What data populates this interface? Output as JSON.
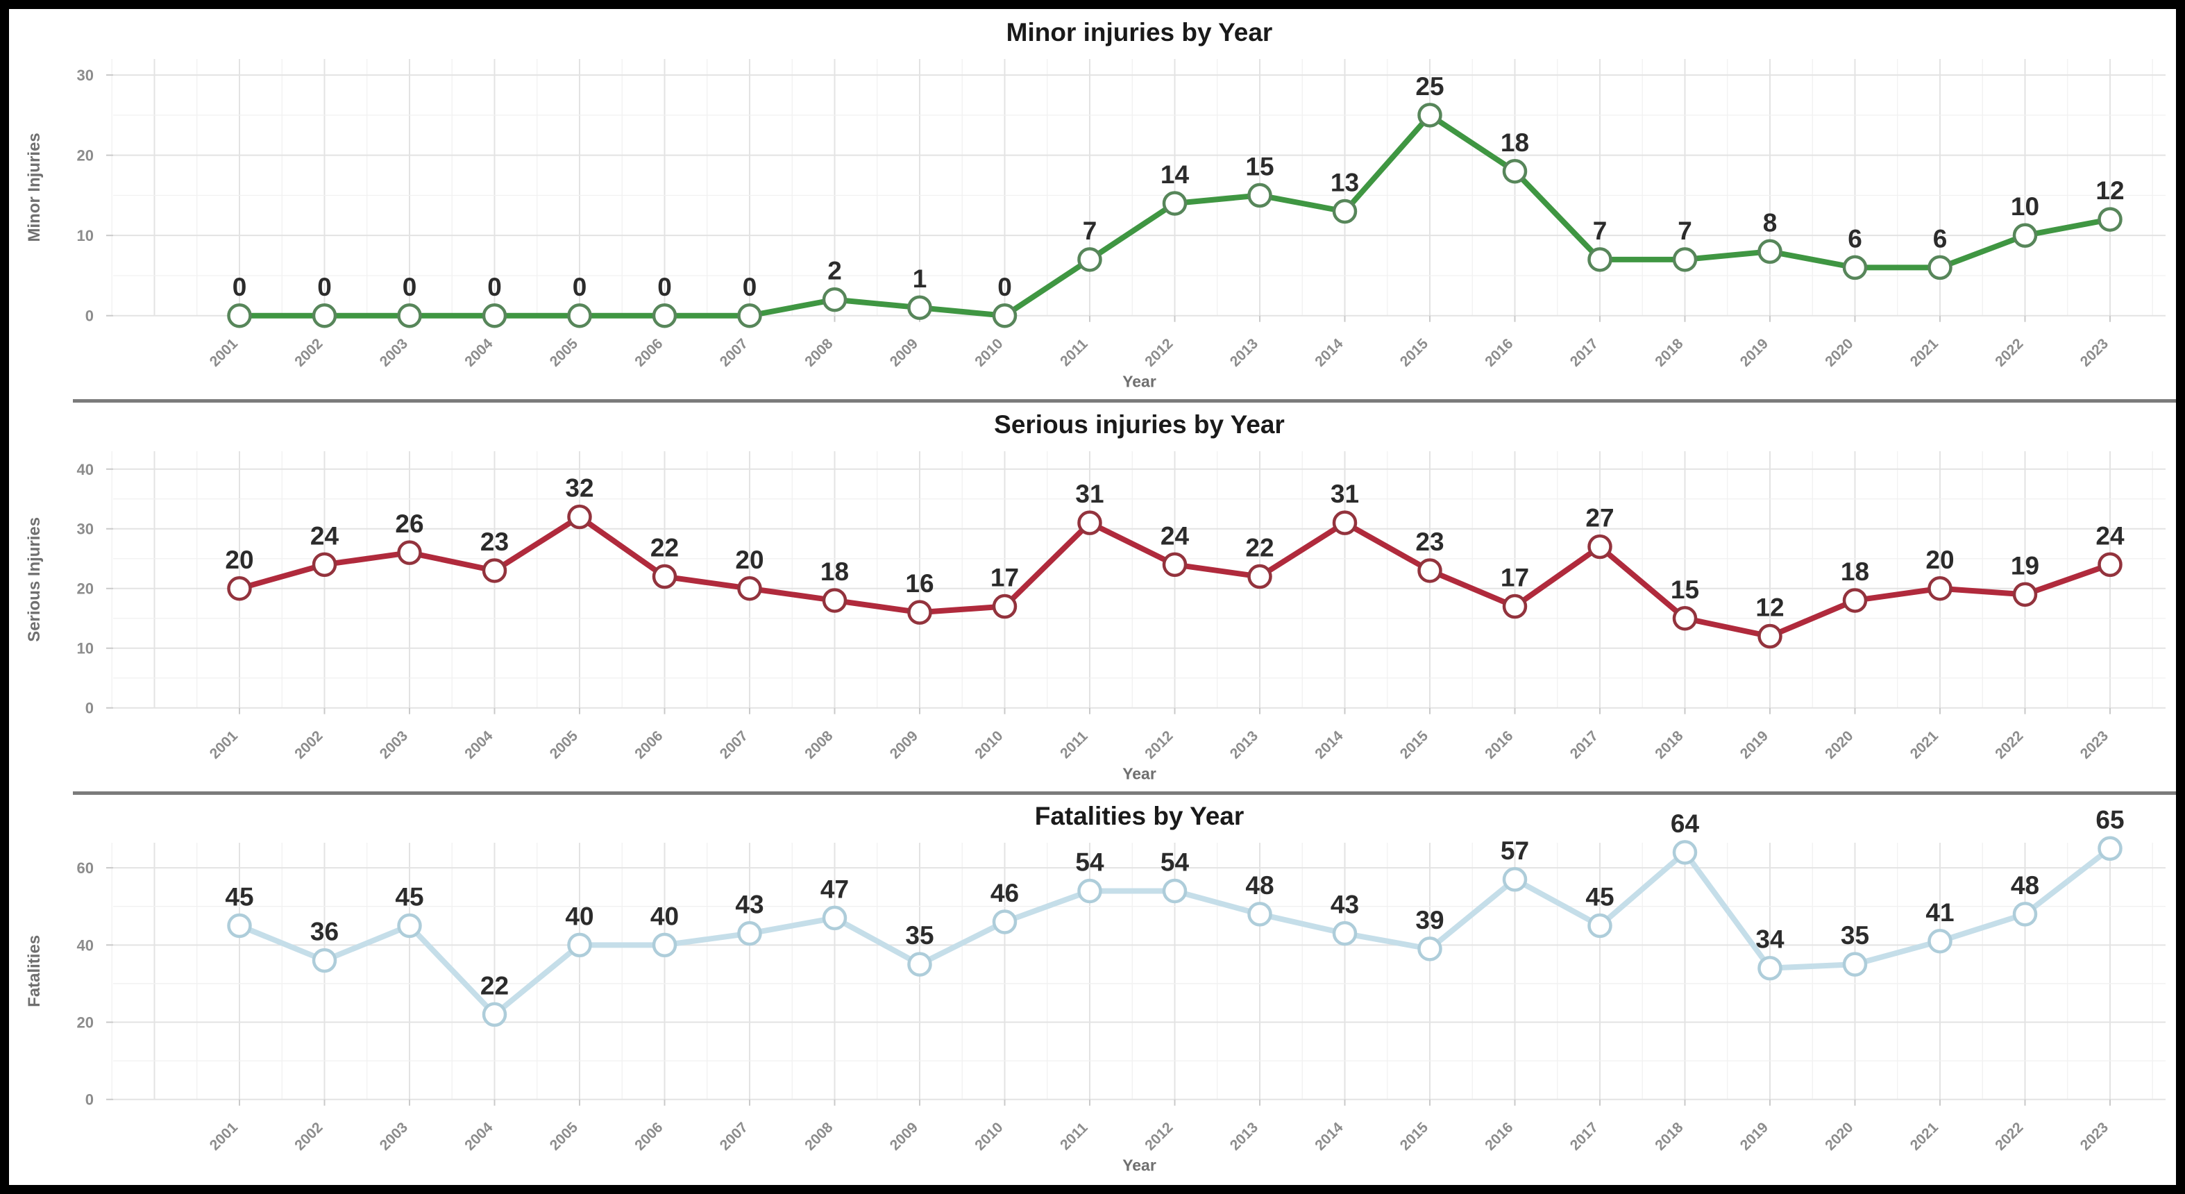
{
  "page": {
    "background": "#ffffff",
    "frame_color": "#000000",
    "divider_color": "#7b7b7b"
  },
  "style": {
    "title_color": "#1a1a1a",
    "tick_color": "#8c8c8c",
    "axis_label_color": "#6f6f6f",
    "grid_major": "#e3e3e3",
    "grid_minor": "#f1f1f1",
    "tick_mark_color": "#c9c9c9",
    "label_color": "#2b2b2b"
  },
  "chart_data": [
    {
      "type": "line",
      "title": "Minor injuries by Year",
      "xlabel": "Year",
      "ylabel": "Minor Injuries",
      "legend": "none",
      "grid": true,
      "data_labels": true,
      "categories": [
        "2001",
        "2002",
        "2003",
        "2004",
        "2005",
        "2006",
        "2007",
        "2008",
        "2009",
        "2010",
        "2011",
        "2012",
        "2013",
        "2014",
        "2015",
        "2016",
        "2017",
        "2018",
        "2019",
        "2020",
        "2021",
        "2022",
        "2023"
      ],
      "values": [
        0,
        0,
        0,
        0,
        0,
        0,
        0,
        2,
        1,
        0,
        7,
        14,
        15,
        13,
        25,
        18,
        7,
        7,
        8,
        6,
        6,
        10,
        12
      ],
      "yticks": [
        0,
        10,
        20,
        30
      ],
      "minor_step": 5,
      "ylim": [
        0,
        32
      ],
      "ymax": 32,
      "line_color": "#3f9642",
      "marker_stroke": "#57865a",
      "marker_fill": "#ffffff"
    },
    {
      "type": "line",
      "title": "Serious injuries by Year",
      "xlabel": "Year",
      "ylabel": "Serious Injuries",
      "legend": "none",
      "grid": true,
      "data_labels": true,
      "categories": [
        "2001",
        "2002",
        "2003",
        "2004",
        "2005",
        "2006",
        "2007",
        "2008",
        "2009",
        "2010",
        "2011",
        "2012",
        "2013",
        "2014",
        "2015",
        "2016",
        "2017",
        "2018",
        "2019",
        "2020",
        "2021",
        "2022",
        "2023"
      ],
      "values": [
        20,
        24,
        26,
        23,
        32,
        22,
        20,
        18,
        16,
        17,
        31,
        24,
        22,
        31,
        23,
        17,
        27,
        15,
        12,
        18,
        20,
        19,
        24
      ],
      "yticks": [
        0,
        10,
        20,
        30,
        40
      ],
      "minor_step": 5,
      "ylim": [
        0,
        43
      ],
      "ymax": 43,
      "line_color": "#b02a3c",
      "marker_stroke": "#93333d",
      "marker_fill": "#ffffff"
    },
    {
      "type": "line",
      "title": "Fatalities by Year",
      "xlabel": "Year",
      "ylabel": "Fatalities",
      "legend": "none",
      "grid": true,
      "data_labels": true,
      "categories": [
        "2001",
        "2002",
        "2003",
        "2004",
        "2005",
        "2006",
        "2007",
        "2008",
        "2009",
        "2010",
        "2011",
        "2012",
        "2013",
        "2014",
        "2015",
        "2016",
        "2017",
        "2018",
        "2019",
        "2020",
        "2021",
        "2022",
        "2023"
      ],
      "values": [
        45,
        36,
        45,
        22,
        40,
        40,
        43,
        47,
        35,
        46,
        54,
        54,
        48,
        43,
        39,
        57,
        45,
        64,
        34,
        35,
        41,
        48,
        65
      ],
      "yticks": [
        0,
        20,
        40,
        60
      ],
      "minor_step": 10,
      "ylim": [
        0,
        66.5
      ],
      "ymax": 66.5,
      "line_color": "#c5dee9",
      "marker_stroke": "#aecdda",
      "marker_fill": "#ffffff"
    }
  ]
}
